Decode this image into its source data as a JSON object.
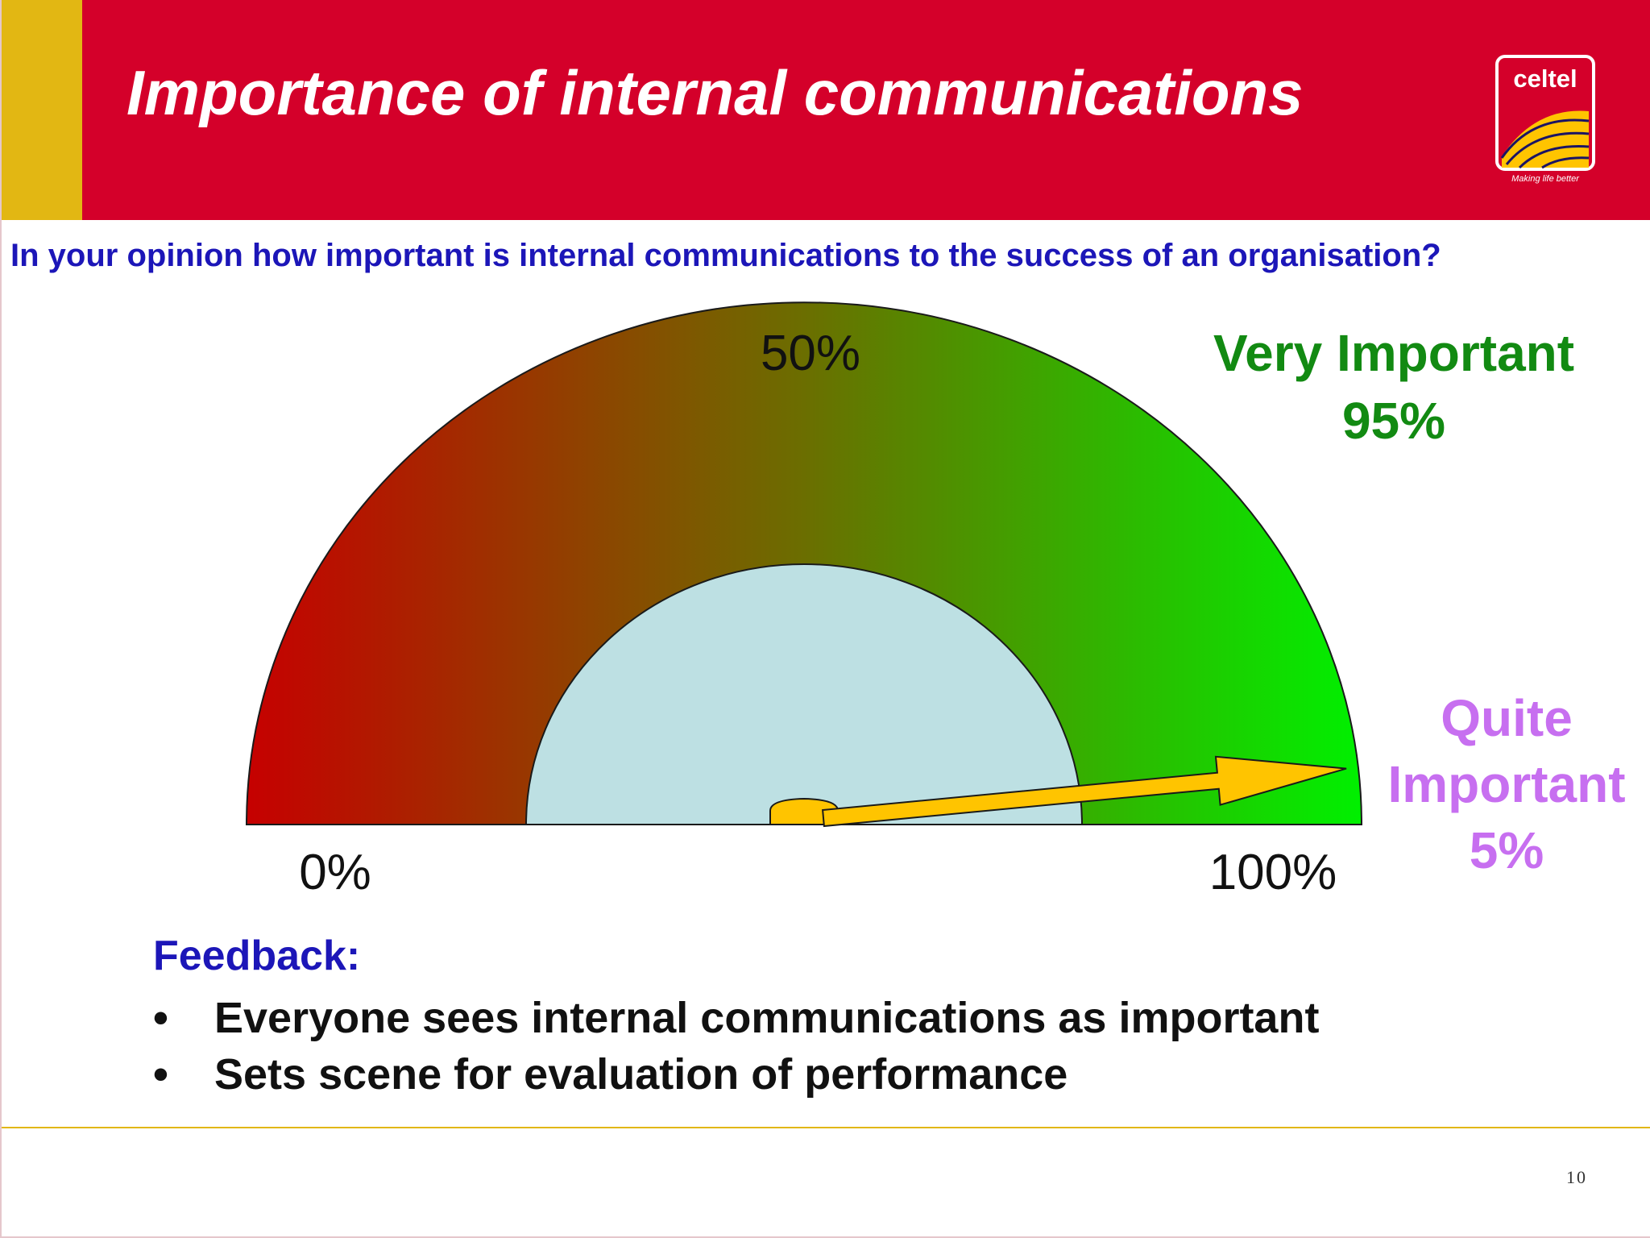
{
  "slide": {
    "title": "Importance of internal communications",
    "question": "In your opinion how important is internal communications to the success of an organisation?",
    "page_number": "10",
    "colors": {
      "header_red": "#d4002a",
      "header_accent": "#e2b713",
      "question_blue": "#1c16b8",
      "very_important_green": "#128a12",
      "quite_important_purple": "#c76ff0",
      "gauge_red": "#c60000",
      "gauge_green": "#00f000",
      "gauge_hub": "#bde0e3",
      "needle_gold": "#ffc400"
    }
  },
  "logo": {
    "brand": "celtel",
    "tagline": "Making life better"
  },
  "chart_data": {
    "type": "gauge",
    "scale_min": 0,
    "scale_max": 100,
    "unit": "%",
    "ticks": [
      {
        "value": 0,
        "label": "0%"
      },
      {
        "value": 50,
        "label": "50%"
      },
      {
        "value": 100,
        "label": "100%"
      }
    ],
    "needle_value": 97,
    "categories": [
      {
        "label_lines": [
          "Very Important",
          "95%"
        ],
        "value": 95
      },
      {
        "label_lines": [
          "Quite",
          "Important",
          "5%"
        ],
        "value": 5
      }
    ]
  },
  "feedback": {
    "heading": "Feedback:",
    "bullet_glyph": "•",
    "items": [
      "Everyone sees internal communications as important",
      "Sets scene for evaluation of performance"
    ]
  }
}
